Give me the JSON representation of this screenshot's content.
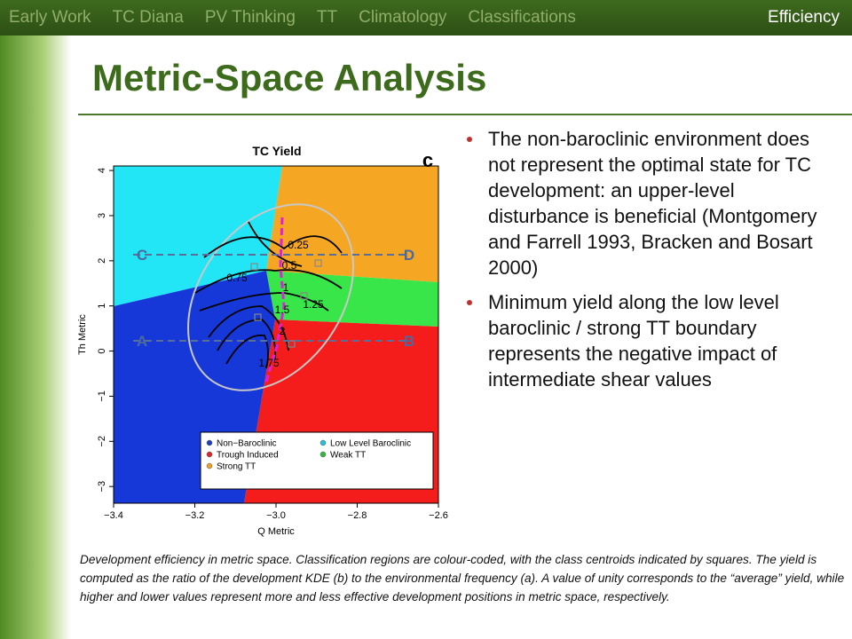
{
  "nav": [
    "Early Work",
    "TC Diana",
    "PV Thinking",
    "TT",
    "Climatology",
    "Classifications",
    "Efficiency"
  ],
  "title": "Metric-Space Analysis",
  "bullets": [
    "The non-baroclinic environment does not represent the optimal state for TC development:  an upper-level disturbance is beneficial (Montgomery and Farrell 1993, Bracken and Bosart 2000)",
    "Minimum yield along the low level baroclinic / strong TT boundary represents the negative impact of intermediate shear values"
  ],
  "caption": "Development efficiency in metric space.  Classification regions are colour-coded, with the class centroids indicated by squares.  The yield is computed as the ratio of the development KDE (b) to the environmental frequency (a).  A value of unity corresponds to the “average” yield, while higher and lower values represent more and less effective development positions in metric space, respectively.",
  "chart_data": {
    "type": "contour",
    "title": "TC Yield",
    "panel_label": "c",
    "xlabel": "Q Metric",
    "ylabel": "Th Metric",
    "xlim": [
      -3.4,
      -2.6
    ],
    "ylim": [
      -3.37,
      4.1
    ],
    "xticks": [
      {
        "value": -3.4,
        "label": "−3.4"
      },
      {
        "value": -3.2,
        "label": "−3.2"
      },
      {
        "value": -3.0,
        "label": "−3.0"
      },
      {
        "value": -2.8,
        "label": "−2.8"
      },
      {
        "value": -2.6,
        "label": "−2.6"
      }
    ],
    "yticks": [
      {
        "value": -3,
        "label": "−3"
      },
      {
        "value": -2,
        "label": "−2"
      },
      {
        "value": -1,
        "label": "−1"
      },
      0,
      1,
      2,
      3,
      4
    ],
    "contour_levels": [
      0.25,
      0.5,
      0.75,
      1,
      1.25,
      1.5,
      2,
      1.75
    ],
    "points": [
      "C",
      "D",
      "A",
      "B"
    ],
    "legend": [
      {
        "name": "Non−Baroclinic",
        "color": "#1f3fbf"
      },
      {
        "name": "Low Level Baroclinic",
        "color": "#22c3d8"
      },
      {
        "name": "Trough Induced",
        "color": "#e0252a"
      },
      {
        "name": "Weak TT",
        "color": "#2ebd3a"
      },
      {
        "name": "Strong TT",
        "color": "#f0a024"
      }
    ]
  }
}
